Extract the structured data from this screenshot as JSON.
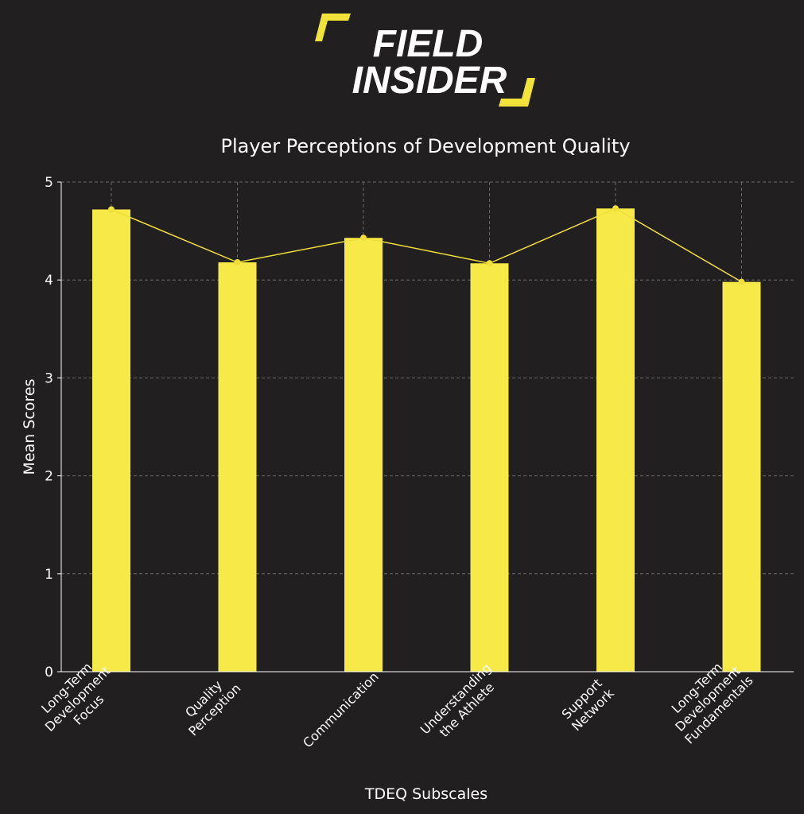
{
  "logo": {
    "line1": "FIELD",
    "line2": "INSIDER"
  },
  "colors": {
    "background": "#221f20",
    "bar": "#f7ea48",
    "line": "#f0df3a",
    "text": "#ffffff",
    "grid": "#6a6a6a",
    "logo_accent": "#f2e33a"
  },
  "chart_data": {
    "type": "bar",
    "title": "Player Perceptions of Development Quality",
    "xlabel": "TDEQ Subscales",
    "ylabel": "Mean Scores",
    "ylim": [
      0,
      5
    ],
    "yticks": [
      0,
      1,
      2,
      3,
      4,
      5
    ],
    "grid": true,
    "categories": [
      [
        "Long-Term",
        "Development",
        "Focus"
      ],
      [
        "Quality",
        "Perception"
      ],
      [
        "Communication"
      ],
      [
        "Understanding",
        "the Athlete"
      ],
      [
        "Support",
        "Network"
      ],
      [
        "Long-Term",
        "Development",
        "Fundamentals"
      ]
    ],
    "values": [
      4.72,
      4.18,
      4.43,
      4.17,
      4.73,
      3.98
    ],
    "overlay": "line-with-markers"
  }
}
